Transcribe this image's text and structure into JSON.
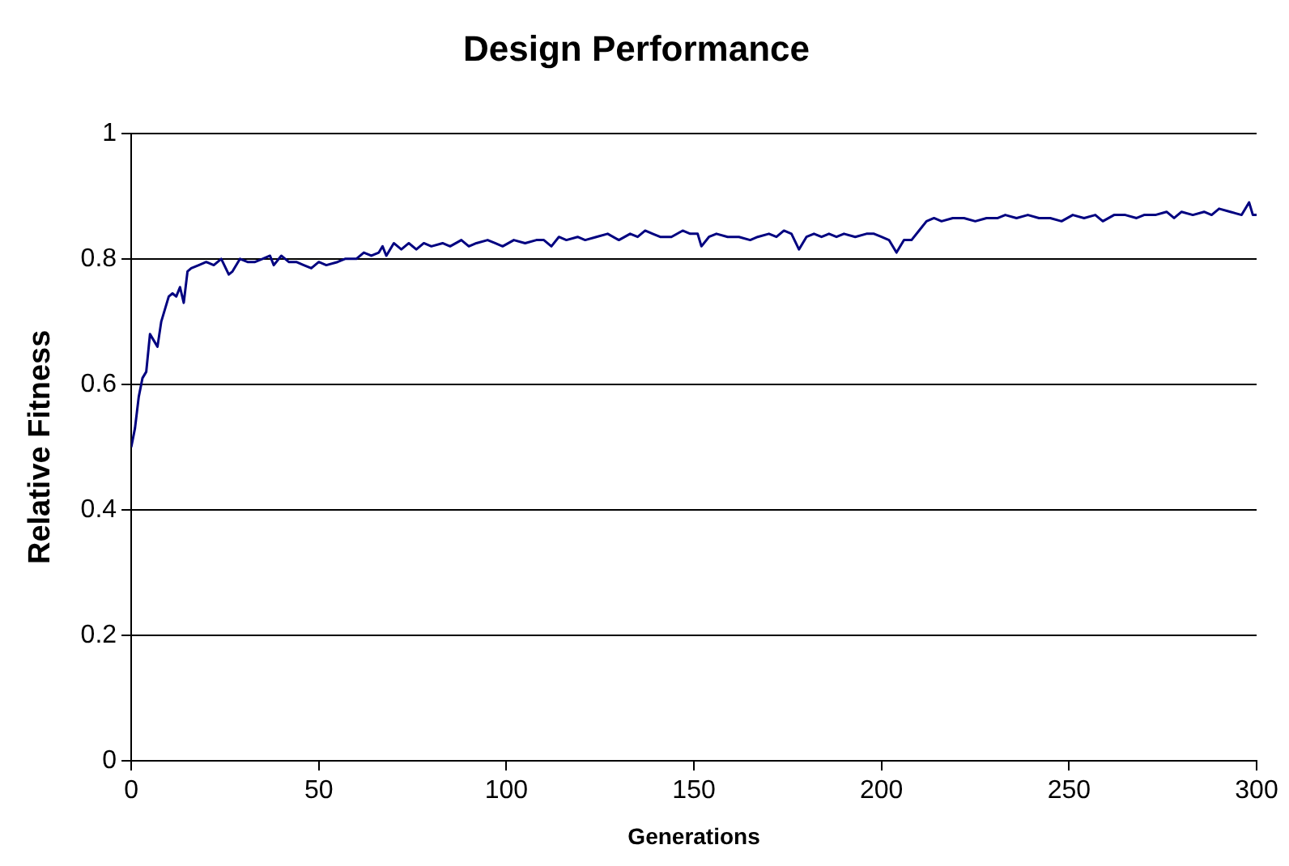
{
  "chart_data": {
    "type": "line",
    "title": "Design Performance",
    "xlabel": "Generations",
    "ylabel": "Relative Fitness",
    "grid": "y",
    "legend": false,
    "marker": "none",
    "line_style": "solid",
    "xlim": [
      0,
      300
    ],
    "xticks": [
      0,
      50,
      100,
      150,
      200,
      250,
      300
    ],
    "ylim": [
      0,
      1
    ],
    "yticks": [
      0,
      0.2,
      0.4,
      0.6,
      0.8,
      1
    ],
    "series": [
      {
        "color": "#000080",
        "x": [
          0,
          1,
          2,
          3,
          4,
          5,
          6,
          7,
          8,
          9,
          10,
          11,
          12,
          13,
          14,
          15,
          16,
          18,
          20,
          22,
          24,
          26,
          27,
          29,
          31,
          33,
          35,
          37,
          38,
          40,
          42,
          44,
          46,
          48,
          50,
          52,
          55,
          57,
          60,
          62,
          64,
          66,
          67,
          68,
          70,
          72,
          74,
          76,
          78,
          80,
          83,
          85,
          88,
          90,
          92,
          95,
          97,
          99,
          102,
          105,
          108,
          110,
          112,
          114,
          116,
          119,
          121,
          124,
          127,
          130,
          133,
          135,
          137,
          139,
          141,
          144,
          147,
          149,
          151,
          152,
          154,
          156,
          159,
          162,
          165,
          167,
          170,
          172,
          174,
          176,
          178,
          180,
          182,
          184,
          186,
          188,
          190,
          193,
          196,
          198,
          200,
          202,
          204,
          206,
          208,
          210,
          212,
          214,
          216,
          219,
          222,
          225,
          228,
          231,
          233,
          236,
          239,
          242,
          245,
          248,
          251,
          254,
          257,
          259,
          262,
          265,
          268,
          270,
          273,
          276,
          278,
          280,
          283,
          286,
          288,
          290,
          293,
          296,
          298,
          299,
          300
        ],
        "values": [
          0.5,
          0.53,
          0.58,
          0.61,
          0.62,
          0.68,
          0.67,
          0.66,
          0.7,
          0.72,
          0.74,
          0.745,
          0.74,
          0.755,
          0.73,
          0.78,
          0.785,
          0.79,
          0.795,
          0.79,
          0.8,
          0.775,
          0.78,
          0.8,
          0.795,
          0.795,
          0.8,
          0.805,
          0.79,
          0.805,
          0.795,
          0.795,
          0.79,
          0.785,
          0.795,
          0.79,
          0.795,
          0.8,
          0.8,
          0.81,
          0.805,
          0.81,
          0.82,
          0.805,
          0.825,
          0.815,
          0.825,
          0.815,
          0.825,
          0.82,
          0.825,
          0.82,
          0.83,
          0.82,
          0.825,
          0.83,
          0.825,
          0.82,
          0.83,
          0.825,
          0.83,
          0.83,
          0.82,
          0.835,
          0.83,
          0.835,
          0.83,
          0.835,
          0.84,
          0.83,
          0.84,
          0.835,
          0.845,
          0.84,
          0.835,
          0.835,
          0.845,
          0.84,
          0.84,
          0.82,
          0.835,
          0.84,
          0.835,
          0.835,
          0.83,
          0.835,
          0.84,
          0.835,
          0.845,
          0.84,
          0.815,
          0.835,
          0.84,
          0.835,
          0.84,
          0.835,
          0.84,
          0.835,
          0.84,
          0.84,
          0.835,
          0.83,
          0.81,
          0.83,
          0.83,
          0.845,
          0.86,
          0.865,
          0.86,
          0.865,
          0.865,
          0.86,
          0.865,
          0.865,
          0.87,
          0.865,
          0.87,
          0.865,
          0.865,
          0.86,
          0.87,
          0.865,
          0.87,
          0.86,
          0.87,
          0.87,
          0.865,
          0.87,
          0.87,
          0.875,
          0.865,
          0.875,
          0.87,
          0.875,
          0.87,
          0.88,
          0.875,
          0.87,
          0.89,
          0.87,
          0.87
        ]
      }
    ]
  }
}
